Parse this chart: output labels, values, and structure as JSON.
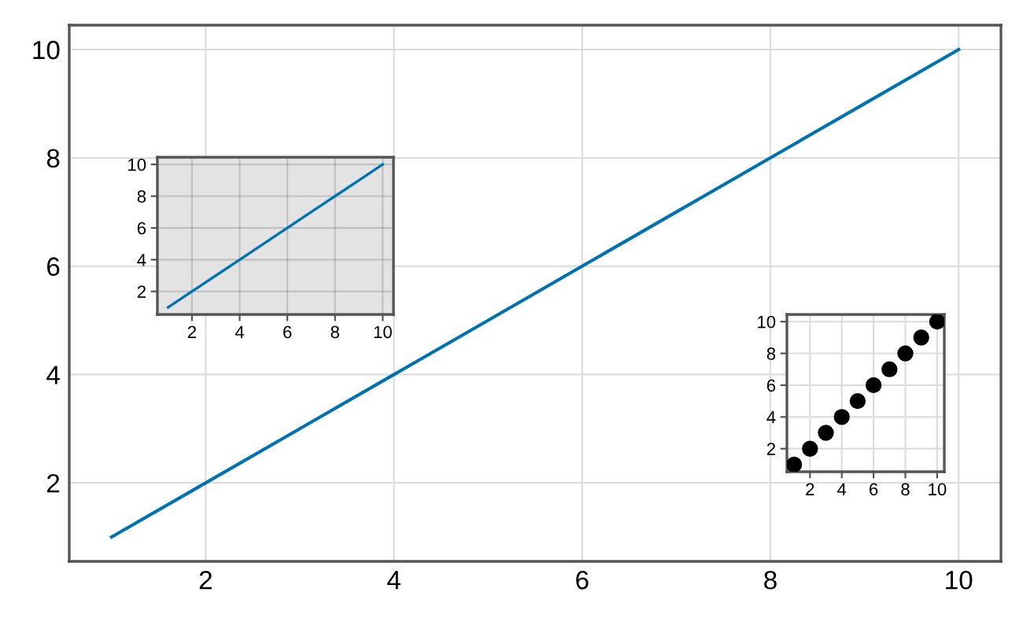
{
  "chart_data": [
    {
      "type": "line",
      "x": [
        1,
        2,
        3,
        4,
        5,
        6,
        7,
        8,
        9,
        10
      ],
      "series": [
        {
          "color": "#0072b2",
          "values": [
            1,
            2,
            3,
            4,
            5,
            6,
            7,
            8,
            9,
            10
          ]
        }
      ],
      "xlim": [
        0.55,
        10.45
      ],
      "ylim": [
        0.55,
        10.45
      ],
      "xticks": [
        2,
        4,
        6,
        8,
        10
      ],
      "yticks": [
        2,
        4,
        6,
        8,
        10
      ],
      "grid": true,
      "marker": "none",
      "line_style": "solid"
    },
    {
      "type": "line",
      "x": [
        1,
        2,
        3,
        4,
        5,
        6,
        7,
        8,
        9,
        10
      ],
      "series": [
        {
          "color": "#0072b2",
          "values": [
            1,
            2,
            3,
            4,
            5,
            6,
            7,
            8,
            9,
            10
          ]
        }
      ],
      "xlim": [
        0.55,
        10.45
      ],
      "ylim": [
        0.55,
        10.45
      ],
      "xticks": [
        2,
        4,
        6,
        8,
        10
      ],
      "yticks": [
        2,
        4,
        6,
        8,
        10
      ],
      "grid": true,
      "marker": "none",
      "line_style": "solid"
    },
    {
      "type": "scatter",
      "x": [
        1,
        2,
        3,
        4,
        5,
        6,
        7,
        8,
        9,
        10
      ],
      "series": [
        {
          "color": "#000000",
          "values": [
            1,
            2,
            3,
            4,
            5,
            6,
            7,
            8,
            9,
            10
          ]
        }
      ],
      "xlim": [
        0.55,
        10.45
      ],
      "ylim": [
        0.55,
        10.45
      ],
      "xticks": [
        2,
        4,
        6,
        8,
        10
      ],
      "yticks": [
        2,
        4,
        6,
        8,
        10
      ],
      "grid": true,
      "marker": "circle"
    }
  ]
}
